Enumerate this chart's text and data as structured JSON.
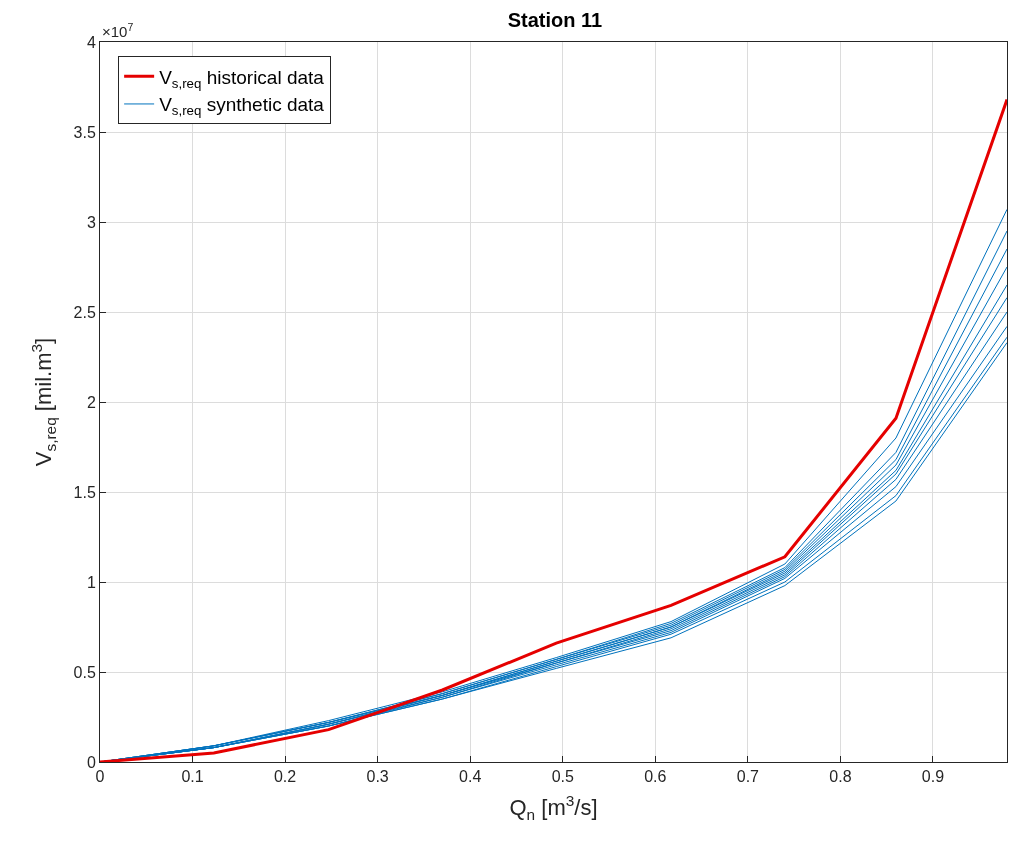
{
  "chart_data": {
    "type": "line",
    "title": "Station 11",
    "xlabel": "Q$_{n}$ [m$^{3}$/s]",
    "ylabel": "V$_{s,req}$ [mil.m$^{3}$]",
    "x": [
      0,
      0.123,
      0.247,
      0.37,
      0.493,
      0.617,
      0.74,
      0.86,
      0.98
    ],
    "xlim": [
      0,
      0.98
    ],
    "xticks": [
      0,
      0.1,
      0.2,
      0.3,
      0.4,
      0.5,
      0.6,
      0.7,
      0.8,
      0.9
    ],
    "ylim": [
      0,
      4
    ],
    "yticks": [
      0,
      0.5,
      1,
      1.5,
      2,
      2.5,
      3,
      3.5,
      4
    ],
    "annotations": [
      "×10$^{7}$"
    ],
    "grid": true,
    "legend": "top left",
    "marker": "none",
    "line_style": "solid",
    "series": [
      {
        "name": "V$_{s,req}$ historical data",
        "color": "#e50000",
        "values": [
          0,
          0.05,
          0.18,
          0.4,
          0.66,
          0.87,
          1.14,
          1.91,
          3.68
        ]
      },
      {
        "name": "V$_{s,req}$ synthetic data",
        "color": "#0072bd",
        "values": [
          0,
          0.09,
          0.23,
          0.39,
          0.58,
          0.78,
          1.1,
          1.8,
          3.07
        ]
      },
      {
        "color": "#0072bd",
        "values": [
          0,
          0.09,
          0.22,
          0.38,
          0.57,
          0.77,
          1.08,
          1.72,
          2.95
        ]
      },
      {
        "color": "#0072bd",
        "values": [
          0,
          0.09,
          0.22,
          0.38,
          0.57,
          0.76,
          1.07,
          1.68,
          2.85
        ]
      },
      {
        "color": "#0072bd",
        "values": [
          0,
          0.09,
          0.22,
          0.37,
          0.56,
          0.75,
          1.06,
          1.65,
          2.75
        ]
      },
      {
        "color": "#0072bd",
        "values": [
          0,
          0.08,
          0.21,
          0.37,
          0.56,
          0.75,
          1.05,
          1.62,
          2.65
        ]
      },
      {
        "color": "#0072bd",
        "values": [
          0,
          0.08,
          0.21,
          0.37,
          0.55,
          0.74,
          1.04,
          1.6,
          2.58
        ]
      },
      {
        "color": "#0072bd",
        "values": [
          0,
          0.08,
          0.21,
          0.36,
          0.55,
          0.73,
          1.03,
          1.57,
          2.5
        ]
      },
      {
        "color": "#0072bd",
        "values": [
          0,
          0.08,
          0.2,
          0.36,
          0.54,
          0.72,
          1.02,
          1.53,
          2.42
        ]
      },
      {
        "color": "#0072bd",
        "values": [
          0,
          0.08,
          0.2,
          0.35,
          0.53,
          0.71,
          1.0,
          1.48,
          2.36
        ]
      },
      {
        "color": "#0072bd",
        "values": [
          0,
          0.08,
          0.2,
          0.35,
          0.52,
          0.69,
          0.98,
          1.45,
          2.33
        ]
      }
    ]
  }
}
